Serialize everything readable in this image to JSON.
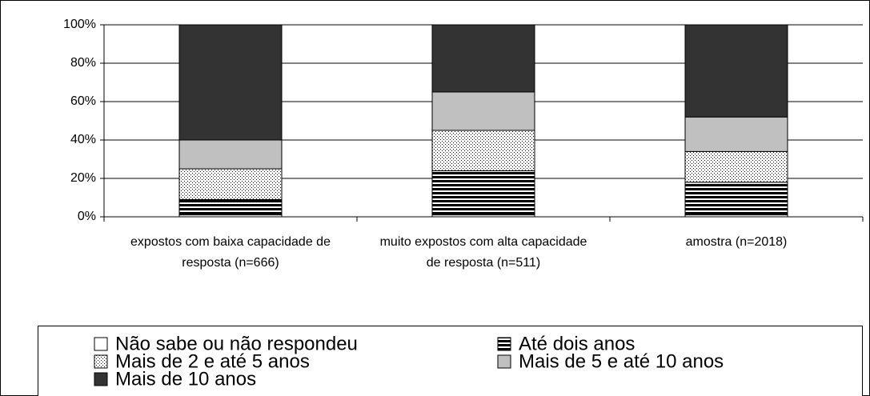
{
  "chart_data": {
    "type": "stacked_bar",
    "categories": [
      "expostos com baixa capacidade de resposta (n=666)",
      "muito expostos com alta capacidade de resposta (n=511)",
      "amostra (n=2018)"
    ],
    "series": [
      {
        "name": "Não sabe ou não respondeu",
        "color": "#ffffff",
        "pattern": "none",
        "values": [
          1,
          1,
          1
        ]
      },
      {
        "name": "Até dois anos",
        "color": "#000000",
        "pattern": "horizontal",
        "values": [
          8,
          23,
          17
        ]
      },
      {
        "name": "Mais de 2 e até 5 anos",
        "color": "#000000",
        "pattern": "dots",
        "values": [
          16,
          21,
          16
        ]
      },
      {
        "name": "Mais de 5 e até 10 anos",
        "color": "#c0c0c0",
        "pattern": "none",
        "values": [
          15,
          20,
          18
        ]
      },
      {
        "name": "Mais de 10 anos",
        "color": "#333333",
        "pattern": "none",
        "values": [
          60,
          35,
          48
        ]
      }
    ],
    "ylim": [
      0,
      100
    ],
    "yticks": [
      {
        "value": 0,
        "label": "0%"
      },
      {
        "value": 20,
        "label": "20%"
      },
      {
        "value": 40,
        "label": "40%"
      },
      {
        "value": 60,
        "label": "60%"
      },
      {
        "value": 80,
        "label": "80%"
      },
      {
        "value": 100,
        "label": "100%"
      }
    ],
    "grid": true
  }
}
